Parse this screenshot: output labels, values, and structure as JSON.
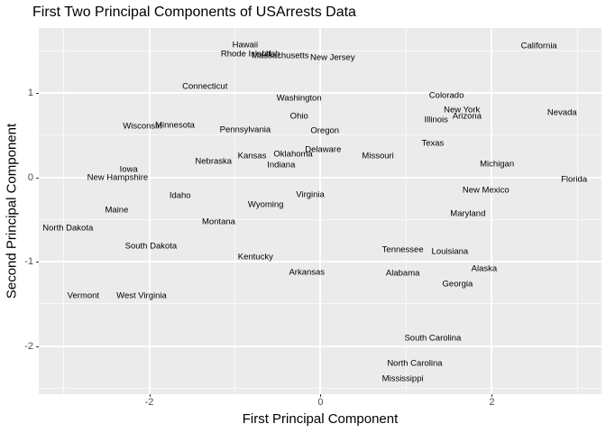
{
  "title": "First Two Principal Components of USArrests Data",
  "axes": {
    "x_title": "First Principal Component",
    "y_title": "Second Principal Component",
    "x_tick_labels": [
      "-2",
      "0",
      "2"
    ],
    "y_tick_labels": [
      "1",
      "0",
      "-1",
      "-2"
    ]
  },
  "chart_data": {
    "type": "scatter",
    "title": "First Two Principal Components of USArrests Data",
    "xlabel": "First Principal Component",
    "ylabel": "Second Principal Component",
    "xlim": [
      -3.29,
      3.28
    ],
    "ylim": [
      -2.57,
      1.77
    ],
    "x_major_ticks": [
      -2,
      0,
      2
    ],
    "x_minor_ticks": [
      -3,
      -1,
      1,
      3
    ],
    "y_major_ticks": [
      1,
      0,
      -1,
      -2
    ],
    "y_minor_ticks": [
      1.5,
      0.5,
      -0.5,
      -1.5,
      -2.5
    ],
    "grid": true,
    "legend": false,
    "point_style": "text-label",
    "colors": {
      "panel_bg": "#EBEBEB",
      "grid_major": "#FFFFFF",
      "grid_minor": "#FFFFFF",
      "label_text": "#000000",
      "axis_text": "#4D4D4D",
      "tick_mark": "#333333"
    },
    "points": [
      {
        "label": "Hawaii",
        "x": -0.88,
        "y": 1.57
      },
      {
        "label": "Rhode Island",
        "x": -0.87,
        "y": 1.46
      },
      {
        "label": "Utah",
        "x": -0.58,
        "y": 1.46
      },
      {
        "label": "Massachusetts",
        "x": -0.47,
        "y": 1.44
      },
      {
        "label": "New Jersey",
        "x": 0.14,
        "y": 1.42
      },
      {
        "label": "California",
        "x": 2.55,
        "y": 1.56
      },
      {
        "label": "Connecticut",
        "x": -1.35,
        "y": 1.08
      },
      {
        "label": "Washington",
        "x": -0.25,
        "y": 0.94
      },
      {
        "label": "Colorado",
        "x": 1.47,
        "y": 0.97
      },
      {
        "label": "New York",
        "x": 1.65,
        "y": 0.8
      },
      {
        "label": "Arizona",
        "x": 1.71,
        "y": 0.72
      },
      {
        "label": "Illinois",
        "x": 1.35,
        "y": 0.68
      },
      {
        "label": "Nevada",
        "x": 2.82,
        "y": 0.76
      },
      {
        "label": "Ohio",
        "x": -0.25,
        "y": 0.72
      },
      {
        "label": "Wisconsin",
        "x": -2.08,
        "y": 0.61
      },
      {
        "label": "Minnesota",
        "x": -1.7,
        "y": 0.62
      },
      {
        "label": "Pennsylvania",
        "x": -0.88,
        "y": 0.56
      },
      {
        "label": "Oregon",
        "x": 0.05,
        "y": 0.55
      },
      {
        "label": "Texas",
        "x": 1.31,
        "y": 0.4
      },
      {
        "label": "Delaware",
        "x": 0.03,
        "y": 0.33
      },
      {
        "label": "Kansas",
        "x": -0.8,
        "y": 0.25
      },
      {
        "label": "Oklahoma",
        "x": -0.32,
        "y": 0.27
      },
      {
        "label": "Missouri",
        "x": 0.67,
        "y": 0.25
      },
      {
        "label": "Nebraska",
        "x": -1.25,
        "y": 0.19
      },
      {
        "label": "Indiana",
        "x": -0.46,
        "y": 0.14
      },
      {
        "label": "Michigan",
        "x": 2.06,
        "y": 0.16
      },
      {
        "label": "Iowa",
        "x": -2.24,
        "y": 0.09
      },
      {
        "label": "New Hampshire",
        "x": -2.37,
        "y": 0.0
      },
      {
        "label": "Florida",
        "x": 2.96,
        "y": -0.03
      },
      {
        "label": "Virginia",
        "x": -0.12,
        "y": -0.21
      },
      {
        "label": "New Mexico",
        "x": 1.93,
        "y": -0.15
      },
      {
        "label": "Idaho",
        "x": -1.64,
        "y": -0.22
      },
      {
        "label": "Wyoming",
        "x": -0.64,
        "y": -0.32
      },
      {
        "label": "Maine",
        "x": -2.38,
        "y": -0.39
      },
      {
        "label": "Maryland",
        "x": 1.72,
        "y": -0.43
      },
      {
        "label": "Montana",
        "x": -1.19,
        "y": -0.53
      },
      {
        "label": "North Dakota",
        "x": -2.95,
        "y": -0.6
      },
      {
        "label": "South Dakota",
        "x": -1.98,
        "y": -0.82
      },
      {
        "label": "Kentucky",
        "x": -0.76,
        "y": -0.94
      },
      {
        "label": "Tennessee",
        "x": 0.96,
        "y": -0.86
      },
      {
        "label": "Louisiana",
        "x": 1.51,
        "y": -0.88
      },
      {
        "label": "Arkansas",
        "x": -0.16,
        "y": -1.13
      },
      {
        "label": "Alabama",
        "x": 0.96,
        "y": -1.14
      },
      {
        "label": "Alaska",
        "x": 1.91,
        "y": -1.08
      },
      {
        "label": "Georgia",
        "x": 1.6,
        "y": -1.27
      },
      {
        "label": "Vermont",
        "x": -2.77,
        "y": -1.4
      },
      {
        "label": "West Virginia",
        "x": -2.09,
        "y": -1.41
      },
      {
        "label": "South Carolina",
        "x": 1.31,
        "y": -1.91
      },
      {
        "label": "North Carolina",
        "x": 1.1,
        "y": -2.21
      },
      {
        "label": "Mississippi",
        "x": 0.96,
        "y": -2.39
      }
    ]
  }
}
